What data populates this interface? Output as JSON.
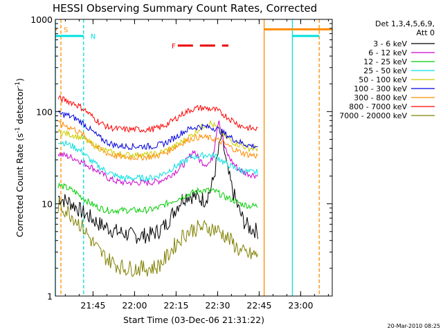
{
  "chart_data": {
    "type": "line",
    "title": "HESSI Observing Summary Count Rates, Corrected",
    "xlabel": "Start Time (03-Dec-06 21:31:22)",
    "ylabel": "Corrected Count Rate (s⁻¹ detector⁻¹)",
    "ylabel_parts": {
      "main": "Corrected Count Rate (s",
      "exp1": "-1",
      "mid": " detector",
      "exp2": "-1",
      "end": ")"
    },
    "x_unit": "minutes after 21:31:22 UT",
    "xlim": [
      0,
      100
    ],
    "ylim": [
      1,
      1000
    ],
    "y_scale": "log",
    "x_ticks": [
      {
        "value": 13.6,
        "label": "21:45"
      },
      {
        "value": 28.6,
        "label": "22:00"
      },
      {
        "value": 43.6,
        "label": "22:15"
      },
      {
        "value": 58.6,
        "label": "22:30"
      },
      {
        "value": 73.6,
        "label": "22:45"
      },
      {
        "value": 88.6,
        "label": "23:00"
      }
    ],
    "y_ticks": [
      {
        "value": 1,
        "label": "1"
      },
      {
        "value": 10,
        "label": "10"
      },
      {
        "value": 100,
        "label": "100"
      },
      {
        "value": 1000,
        "label": "1000"
      }
    ],
    "grid": false,
    "legend": {
      "position": "right",
      "header": [
        "Det 1,3,4,5,6,9,",
        "Att 0"
      ]
    },
    "series": [
      {
        "name": "3 - 6 keV",
        "color": "#000000",
        "x": [
          1,
          3,
          5,
          7,
          10,
          13,
          16,
          19,
          22,
          25,
          28,
          31,
          34,
          37,
          40,
          42,
          44,
          46,
          48,
          50,
          52,
          54,
          56,
          57,
          58,
          59,
          60,
          61,
          62,
          64,
          66,
          68,
          70,
          72,
          73.4
        ],
        "values": [
          12,
          11,
          10.5,
          9.5,
          8,
          7,
          6,
          5.5,
          5,
          4.8,
          4.5,
          4.5,
          4.6,
          5,
          6,
          7.5,
          9.5,
          11.5,
          12.5,
          12,
          11.5,
          11,
          14,
          18,
          26,
          38,
          55,
          38,
          24,
          14,
          9,
          6.5,
          5.5,
          5.2,
          5
        ]
      },
      {
        "name": "6 - 12 keV",
        "color": "#cc00cc",
        "x": [
          1,
          4,
          7,
          10,
          13,
          16,
          19,
          22,
          25,
          28,
          31,
          34,
          37,
          40,
          43,
          46,
          48,
          50,
          52,
          54,
          56,
          57,
          58,
          59,
          60,
          61,
          62,
          64,
          66,
          68,
          70,
          72,
          73.4
        ],
        "values": [
          35,
          33,
          31,
          28,
          25,
          22,
          19,
          17.5,
          17,
          17,
          17,
          17,
          17.5,
          19,
          22,
          26,
          31,
          38,
          30,
          27,
          28,
          34,
          55,
          85,
          60,
          42,
          35,
          28,
          24,
          22,
          21,
          20.5,
          20
        ]
      },
      {
        "name": "12 - 25 keV",
        "color": "#00cc00",
        "x": [
          1,
          4,
          7,
          10,
          13,
          16,
          19,
          22,
          25,
          28,
          31,
          34,
          37,
          40,
          43,
          46,
          49,
          52,
          55,
          58,
          61,
          64,
          67,
          70,
          73.4
        ],
        "values": [
          16,
          15,
          13.5,
          11.5,
          10,
          9,
          8.5,
          8.5,
          8.5,
          8.5,
          8.5,
          8.6,
          9,
          10,
          11,
          12,
          13,
          14,
          14,
          13.5,
          12,
          11,
          10,
          9.5,
          9.5
        ]
      },
      {
        "name": "25 - 50 keV",
        "color": "#00e0e0",
        "x": [
          1,
          4,
          7,
          10,
          13,
          16,
          19,
          22,
          25,
          28,
          31,
          34,
          37,
          40,
          43,
          46,
          49,
          52,
          55,
          58,
          61,
          64,
          67,
          70,
          73.4
        ],
        "values": [
          48,
          45,
          41,
          36,
          29,
          25,
          22,
          20,
          19,
          19,
          19,
          19,
          20,
          22,
          25,
          28,
          32,
          33,
          34,
          33,
          28,
          25,
          23,
          22,
          22
        ]
      },
      {
        "name": "50 - 100 keV",
        "color": "#cccc00",
        "x": [
          1,
          4,
          7,
          10,
          13,
          16,
          19,
          22,
          25,
          28,
          31,
          34,
          37,
          40,
          43,
          46,
          49,
          52,
          54,
          56,
          58,
          61,
          64,
          67,
          70,
          73.4
        ],
        "values": [
          60,
          58,
          55,
          51,
          45,
          40,
          37,
          35,
          34,
          34,
          34,
          34,
          35,
          38,
          42,
          48,
          55,
          65,
          72,
          75,
          68,
          55,
          47,
          43,
          40,
          40
        ]
      },
      {
        "name": "100 - 300 keV",
        "color": "#0000dd",
        "x": [
          1,
          4,
          7,
          10,
          13,
          16,
          19,
          22,
          25,
          28,
          31,
          34,
          37,
          40,
          43,
          46,
          49,
          52,
          55,
          58,
          61,
          64,
          67,
          70,
          73.4
        ],
        "values": [
          95,
          92,
          85,
          75,
          62,
          52,
          46,
          43,
          42,
          42,
          42,
          42,
          43,
          46,
          52,
          60,
          66,
          69,
          68,
          66,
          58,
          51,
          46,
          43,
          42
        ]
      },
      {
        "name": "300 - 800 keV",
        "color": "#ff8c00",
        "x": [
          1,
          4,
          7,
          10,
          13,
          16,
          19,
          22,
          25,
          28,
          31,
          34,
          37,
          40,
          43,
          46,
          49,
          52,
          55,
          58,
          61,
          64,
          67,
          70,
          73.4
        ],
        "values": [
          74,
          70,
          64,
          56,
          46,
          39,
          35,
          33,
          32,
          32,
          32,
          32.5,
          33.5,
          36,
          41,
          46,
          51,
          53,
          52,
          50,
          45,
          40,
          36,
          34,
          33
        ]
      },
      {
        "name": "800 - 7000 keV",
        "color": "#ff0000",
        "x": [
          1,
          4,
          7,
          10,
          13,
          16,
          19,
          22,
          25,
          28,
          31,
          34,
          37,
          40,
          43,
          46,
          49,
          52,
          55,
          58,
          61,
          64,
          67,
          70,
          73.4
        ],
        "values": [
          140,
          132,
          122,
          108,
          90,
          76,
          68,
          65,
          64,
          64,
          64,
          64,
          66,
          72,
          82,
          95,
          105,
          110,
          108,
          104,
          92,
          80,
          70,
          66,
          64
        ]
      },
      {
        "name": "7000 - 20000 keV",
        "color": "#808000",
        "x": [
          1,
          4,
          7,
          10,
          13,
          16,
          19,
          22,
          25,
          28,
          31,
          34,
          37,
          40,
          43,
          46,
          49,
          52,
          55,
          58,
          61,
          64,
          67,
          70,
          73.4
        ],
        "values": [
          9.5,
          8.5,
          7,
          5.5,
          4,
          3,
          2.5,
          2.2,
          2,
          2,
          2,
          2,
          2.1,
          2.6,
          3.5,
          4.5,
          5.2,
          5.5,
          5.5,
          5.3,
          4.6,
          3.8,
          3,
          2.8,
          2.8
        ]
      }
    ],
    "vertical_markers": [
      {
        "x": 0,
        "color": "#00e0e0",
        "style": "solid"
      },
      {
        "x": 2.0,
        "color": "#ff8c00",
        "style": "dashed"
      },
      {
        "x": 10.2,
        "color": "#00e0e0",
        "style": "dashed"
      },
      {
        "x": 75.4,
        "color": "#ff8c00",
        "style": "solid"
      },
      {
        "x": 85.6,
        "color": "#00e0e0",
        "style": "solid"
      },
      {
        "x": 95.3,
        "color": "#ff8c00",
        "style": "dashed"
      }
    ],
    "top_bars": [
      {
        "label": "S",
        "color": "#ff8c00",
        "x_start": 0,
        "x_end": 0.5,
        "y": 780,
        "dashed": false
      },
      {
        "label": "",
        "color": "#ff8c00",
        "x_start": 75.4,
        "x_end": 100,
        "y": 780,
        "dashed": false
      },
      {
        "label": "N",
        "color": "#00e0e0",
        "x_start": 0,
        "x_end": 10.2,
        "y": 660,
        "dashed": false
      },
      {
        "label": "",
        "color": "#00e0e0",
        "x_start": 85.6,
        "x_end": 95.3,
        "y": 660,
        "dashed": false
      },
      {
        "label": "F",
        "color": "#ee0000",
        "x_start": 44.2,
        "x_end": 62.5,
        "y": 520,
        "dashed": true
      }
    ],
    "timestamp": "20-Mar-2010 08:25"
  }
}
